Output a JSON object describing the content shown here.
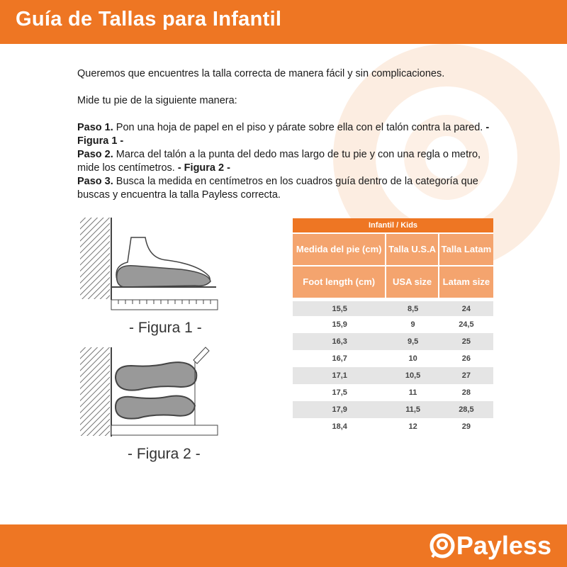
{
  "header": {
    "title": "Guía de Tallas para Infantil"
  },
  "intro": "Queremos que encuentres la talla correcta de manera fácil y sin complicaciones.",
  "measure": "Mide tu pie de la siguiente manera:",
  "steps": [
    {
      "label": "Paso 1.",
      "text": " Pon una hoja de papel en el piso y párate sobre ella con el talón contra la pared. ",
      "fig": "- Figura 1 -"
    },
    {
      "label": "Paso 2.",
      "text": " Marca del talón a la punta del dedo mas largo de tu pie y con una regla o metro, mide los centímetros. ",
      "fig": "- Figura 2 -"
    },
    {
      "label": "Paso 3.",
      "text": " Busca la medida en centímetros en los cuadros guía dentro de la categoría que buscas y encuentra la talla Payless correcta.",
      "fig": ""
    }
  ],
  "figures": {
    "fig1": "- Figura 1 -",
    "fig2": "- Figura 2 -"
  },
  "table": {
    "title": "Infantil / Kids",
    "headers_es": [
      "Medida del pie (cm)",
      "Talla U.S.A",
      "Talla Latam"
    ],
    "headers_en": [
      "Foot length (cm)",
      "USA size",
      "Latam size"
    ],
    "rows": [
      [
        "15,5",
        "8,5",
        "24"
      ],
      [
        "15,9",
        "9",
        "24,5"
      ],
      [
        "16,3",
        "9,5",
        "25"
      ],
      [
        "16,7",
        "10",
        "26"
      ],
      [
        "17,1",
        "10,5",
        "27"
      ],
      [
        "17,5",
        "11",
        "28"
      ],
      [
        "17,9",
        "11,5",
        "28,5"
      ],
      [
        "18,4",
        "12",
        "29"
      ]
    ]
  },
  "footer": {
    "brand": "Payless"
  },
  "colors": {
    "brand": "#ee7623",
    "header_cell": "#f4a46e",
    "row_alt": "#e5e5e5"
  }
}
